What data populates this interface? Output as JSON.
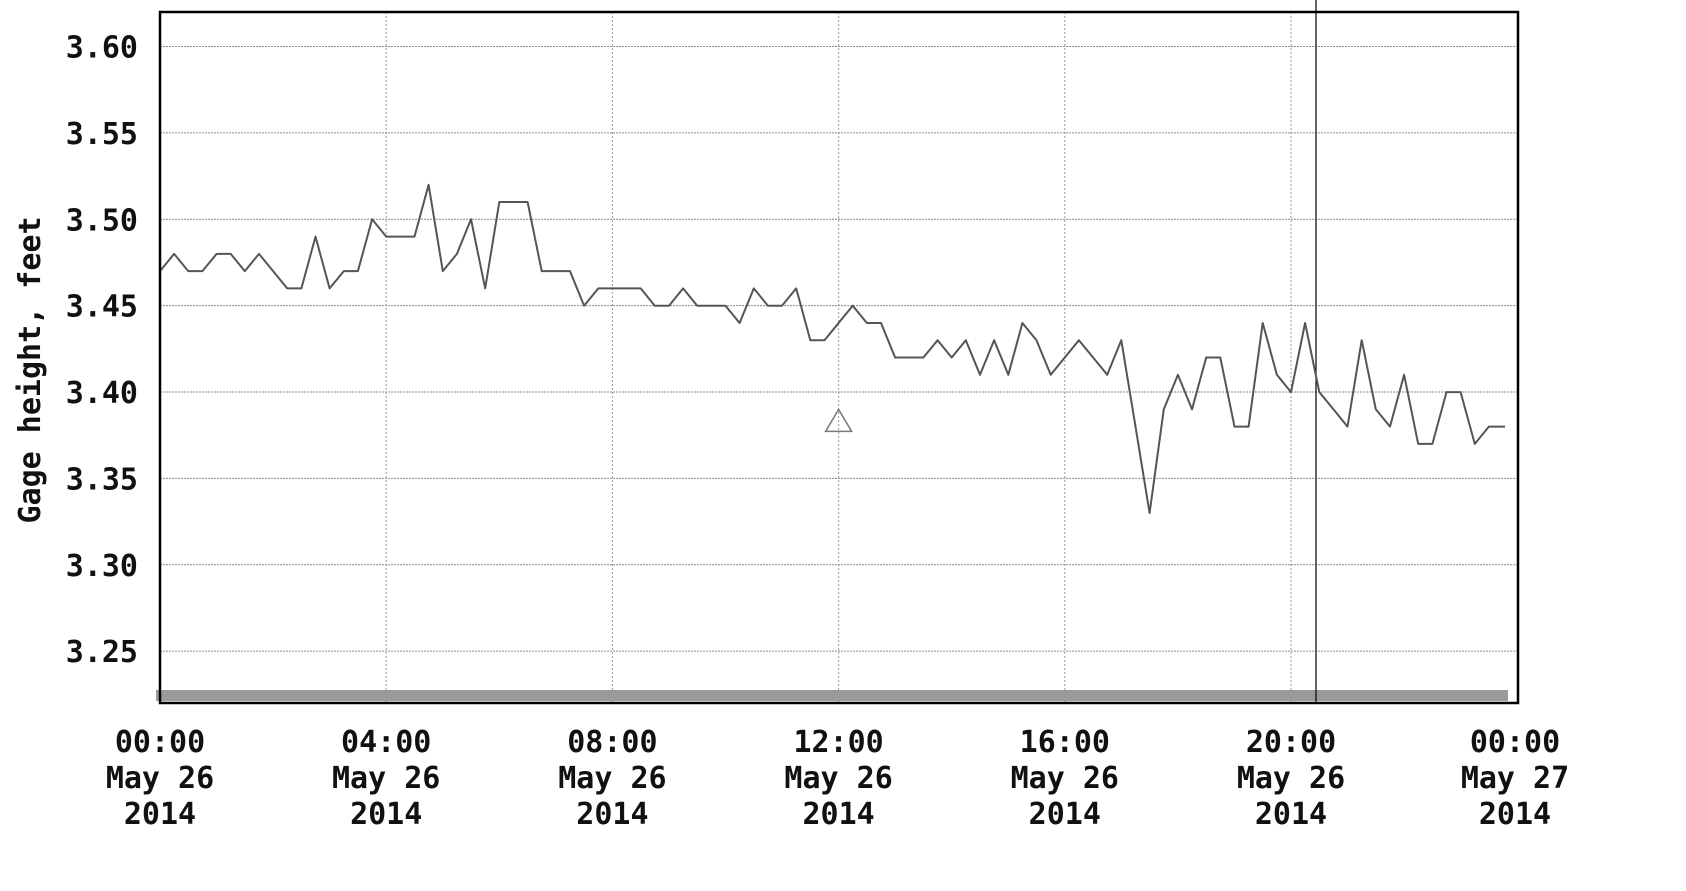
{
  "chart_data": {
    "type": "line",
    "ylabel": "Gage height, feet",
    "xlabel": "",
    "title": "",
    "ylim": [
      3.22,
      3.62
    ],
    "xlim": [
      "2014-05-26 00:00",
      "2014-05-27 00:00"
    ],
    "y_ticks": [
      "3.25",
      "3.30",
      "3.35",
      "3.40",
      "3.45",
      "3.50",
      "3.55",
      "3.60"
    ],
    "x_ticks": [
      {
        "time": "00:00",
        "date": "May 26",
        "year": "2014"
      },
      {
        "time": "04:00",
        "date": "May 26",
        "year": "2014"
      },
      {
        "time": "08:00",
        "date": "May 26",
        "year": "2014"
      },
      {
        "time": "12:00",
        "date": "May 26",
        "year": "2014"
      },
      {
        "time": "16:00",
        "date": "May 26",
        "year": "2014"
      },
      {
        "time": "20:00",
        "date": "May 26",
        "year": "2014"
      },
      {
        "time": "00:00",
        "date": "May 27",
        "year": "2014"
      }
    ],
    "grid": true,
    "series": [
      {
        "color": "#555555",
        "x": [
          "00:00",
          "00:15",
          "00:30",
          "00:45",
          "01:00",
          "01:15",
          "01:30",
          "01:45",
          "02:00",
          "02:15",
          "02:30",
          "02:45",
          "03:00",
          "03:15",
          "03:30",
          "03:45",
          "04:00",
          "04:15",
          "04:30",
          "04:45",
          "05:00",
          "05:15",
          "05:30",
          "05:45",
          "06:00",
          "06:15",
          "06:30",
          "06:45",
          "07:00",
          "07:15",
          "07:30",
          "07:45",
          "08:00",
          "08:15",
          "08:30",
          "08:45",
          "09:00",
          "09:15",
          "09:30",
          "09:45",
          "10:00",
          "10:15",
          "10:30",
          "10:45",
          "11:00",
          "11:15",
          "11:30",
          "11:45",
          "12:00",
          "12:15",
          "12:30",
          "12:45",
          "13:00",
          "13:15",
          "13:30",
          "13:45",
          "14:00",
          "14:15",
          "14:30",
          "14:45",
          "15:00",
          "15:15",
          "15:30",
          "15:45",
          "16:00",
          "16:15",
          "16:30",
          "16:45",
          "17:00",
          "17:15",
          "17:30",
          "17:45",
          "18:00",
          "18:15",
          "18:30",
          "18:45",
          "19:00",
          "19:15",
          "19:30",
          "19:45",
          "20:00",
          "20:15",
          "20:30",
          "20:45",
          "21:00",
          "21:15",
          "21:30",
          "21:45",
          "22:00",
          "22:15",
          "22:30",
          "22:45",
          "23:00",
          "23:15",
          "23:30",
          "23:45"
        ],
        "values": [
          3.47,
          3.48,
          3.47,
          3.47,
          3.48,
          3.48,
          3.47,
          3.48,
          3.47,
          3.46,
          3.46,
          3.49,
          3.46,
          3.47,
          3.47,
          3.5,
          3.49,
          3.49,
          3.49,
          3.52,
          3.47,
          3.48,
          3.5,
          3.46,
          3.51,
          3.51,
          3.51,
          3.47,
          3.47,
          3.47,
          3.45,
          3.46,
          3.46,
          3.46,
          3.46,
          3.45,
          3.45,
          3.46,
          3.45,
          3.45,
          3.45,
          3.44,
          3.46,
          3.45,
          3.45,
          3.46,
          3.43,
          3.43,
          3.44,
          3.45,
          3.44,
          3.44,
          3.42,
          3.42,
          3.42,
          3.43,
          3.42,
          3.43,
          3.41,
          3.43,
          3.41,
          3.44,
          3.43,
          3.41,
          3.42,
          3.43,
          3.42,
          3.41,
          3.43,
          3.38,
          3.33,
          3.39,
          3.41,
          3.39,
          3.42,
          3.42,
          3.38,
          3.38,
          3.44,
          3.41,
          3.4,
          3.44,
          3.4,
          3.39,
          3.38,
          3.43,
          3.39,
          3.38,
          3.41,
          3.37,
          3.37,
          3.4,
          3.4,
          3.37,
          3.38,
          3.38
        ]
      }
    ],
    "annotations": [
      {
        "type": "marker",
        "symbol": "triangle",
        "x": "12:00",
        "y": 3.39
      }
    ]
  }
}
